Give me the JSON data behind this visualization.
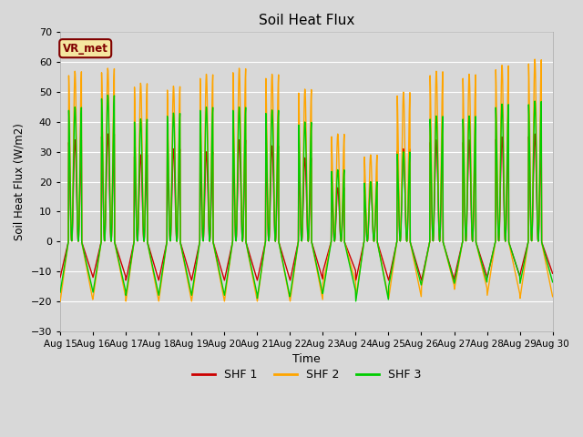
{
  "title": "Soil Heat Flux",
  "ylabel": "Soil Heat Flux (W/m2)",
  "xlabel": "Time",
  "ylim": [
    -30,
    70
  ],
  "yticks": [
    -30,
    -20,
    -10,
    0,
    10,
    20,
    30,
    40,
    50,
    60,
    70
  ],
  "x_labels": [
    "Aug 15",
    "Aug 16",
    "Aug 17",
    "Aug 18",
    "Aug 19",
    "Aug 20",
    "Aug 21",
    "Aug 22",
    "Aug 23",
    "Aug 24",
    "Aug 25",
    "Aug 26",
    "Aug 27",
    "Aug 28",
    "Aug 29",
    "Aug 30"
  ],
  "colors": {
    "SHF1": "#cc0000",
    "SHF2": "#ffa500",
    "SHF3": "#00cc00"
  },
  "legend_labels": [
    "SHF 1",
    "SHF 2",
    "SHF 3"
  ],
  "annotation_text": "VR_met",
  "annotation_color": "#800000",
  "annotation_bg": "#f5e6a0",
  "bg_color": "#d8d8d8",
  "plot_bg_upper": "#cccccc",
  "plot_bg_lower": "#d4d4d4",
  "grid_color": "#ffffff",
  "title_fontsize": 11,
  "n_days": 15,
  "points_per_day": 96,
  "shf1_peaks": [
    34,
    36,
    29,
    31,
    30,
    34,
    32,
    28,
    18,
    20,
    31,
    34,
    34,
    35,
    36
  ],
  "shf2_peaks": [
    57,
    58,
    53,
    52,
    56,
    58,
    56,
    51,
    36,
    29,
    50,
    57,
    56,
    59,
    61
  ],
  "shf3_peaks": [
    45,
    49,
    41,
    43,
    45,
    45,
    44,
    40,
    24,
    20,
    30,
    42,
    42,
    46,
    47
  ],
  "shf1_troughs": [
    -12,
    -12,
    -13,
    -13,
    -13,
    -13,
    -13,
    -13,
    -10,
    -13,
    -13,
    -13,
    -12,
    -12,
    -11
  ],
  "shf2_troughs": [
    -20,
    -19,
    -20,
    -20,
    -20,
    -20,
    -20,
    -20,
    -14,
    -19,
    -19,
    -15,
    -16,
    -18,
    -19
  ],
  "shf3_troughs": [
    -17,
    -17,
    -18,
    -18,
    -18,
    -18,
    -19,
    -18,
    -17,
    -20,
    -15,
    -14,
    -14,
    -12,
    -14
  ]
}
